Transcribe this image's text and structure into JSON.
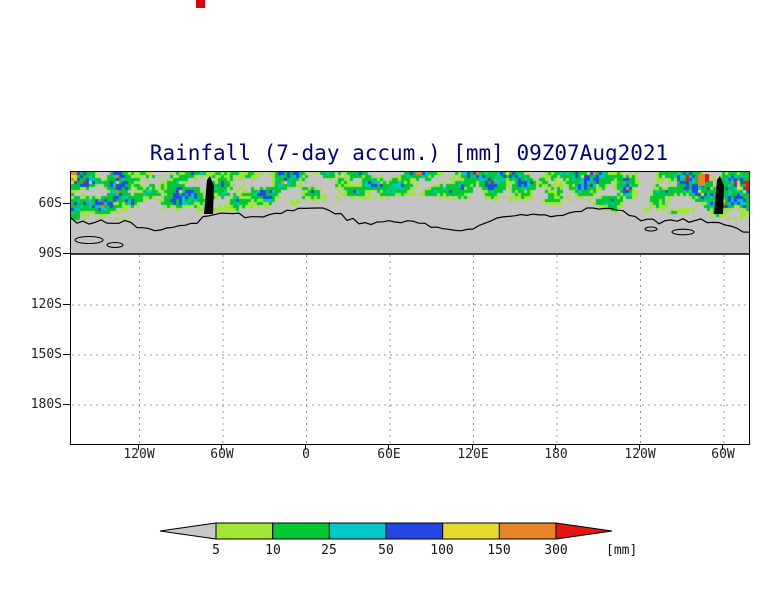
{
  "page": {
    "background": "#ffffff",
    "title_text_color": "#000080",
    "axis_text_color": "#222222",
    "top_marker_color": "#dd0000"
  },
  "chart_data": {
    "type": "heatmap",
    "title": "Rainfall (7-day accum.) [mm] 09Z07Aug2021",
    "variable": "Rainfall (7-day accumulation)",
    "units": "mm",
    "valid_time": "09Z07Aug2021",
    "x_axis": {
      "ticks": [
        "120W",
        "60W",
        "0",
        "60E",
        "120E",
        "180",
        "120W",
        "60W"
      ]
    },
    "y_axis": {
      "ticks": [
        "60S",
        "90S",
        "120S",
        "150S",
        "180S"
      ]
    },
    "grid_style": "dashed gray lat/lon grid",
    "map": {
      "no_rain_fill": "#c4c4c4",
      "coastline_color": "#000000",
      "ocean_background": "#ffffff",
      "field_note": "rainfall colors confined to band near 60S; gray below-5mm band extends to 90S line"
    },
    "colorbar": {
      "units_label": "[mm]",
      "labels": [
        "5",
        "10",
        "25",
        "50",
        "100",
        "150",
        "300"
      ],
      "thresholds_mm": [
        5,
        10,
        25,
        50,
        100,
        150,
        300
      ],
      "below_min_color": "#c8c8c8",
      "above_max_color": "#e61712",
      "bin_colors": [
        "#a0e632",
        "#00c832",
        "#00c8c8",
        "#2348e6",
        "#e6dc30",
        "#e68428"
      ]
    }
  }
}
